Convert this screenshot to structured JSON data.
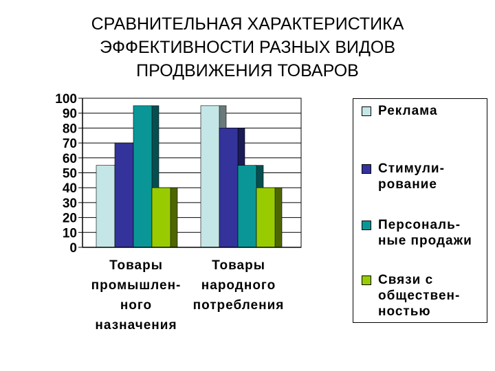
{
  "title_lines": [
    "СРАВНИТЕЛЬНАЯ ХАРАКТЕРИСТИКА",
    "ЭФФЕКТИВНОСТИ РАЗНЫХ ВИДОВ",
    "ПРОДВИЖЕНИЯ ТОВАРОВ"
  ],
  "chart_data": {
    "type": "bar",
    "title": "СРАВНИТЕЛЬНАЯ ХАРАКТЕРИСТИКА ЭФФЕКТИВНОСТИ РАЗНЫХ ВИДОВ ПРОДВИЖЕНИЯ ТОВАРОВ",
    "categories": [
      "Товары промышленного назначения",
      "Товары народного потребления"
    ],
    "category_label_lines": [
      [
        "Товары",
        "промышлен-",
        "ного",
        "назначения"
      ],
      [
        "Товары",
        "народного",
        "потребления"
      ]
    ],
    "series": [
      {
        "name": "Реклама",
        "label_lines": [
          "Реклама"
        ],
        "values": [
          55,
          95
        ],
        "color": "#c4e6e6",
        "side_color": "#6a7a7a"
      },
      {
        "name": "Стимулирование",
        "label_lines": [
          "Стимули-",
          "рование"
        ],
        "values": [
          70,
          80
        ],
        "color": "#33339b",
        "side_color": "#1b1b55"
      },
      {
        "name": "Персональные продажи",
        "label_lines": [
          "Персональ-",
          "ные продажи"
        ],
        "values": [
          95,
          55
        ],
        "color": "#0a9696",
        "side_color": "#064f50"
      },
      {
        "name": "Связи с общественностью",
        "label_lines": [
          "Связи с",
          "обществен-",
          "ностью"
        ],
        "values": [
          40,
          40
        ],
        "color": "#99cc00",
        "side_color": "#4d6600"
      }
    ],
    "ylim": [
      0,
      100
    ],
    "yticks": [
      0,
      10,
      20,
      30,
      40,
      50,
      60,
      70,
      80,
      90,
      100
    ],
    "grid": true,
    "legend_position": "right"
  }
}
